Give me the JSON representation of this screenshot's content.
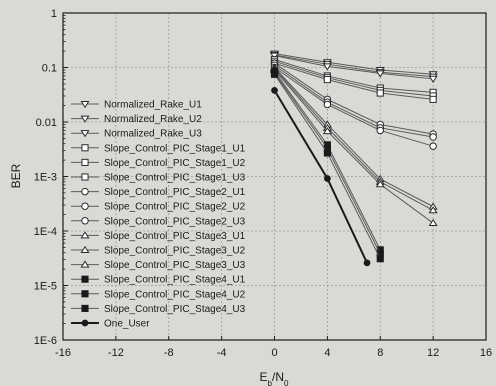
{
  "chart_data": {
    "type": "line",
    "title": "",
    "xlabel": "E",
    "xlabel_sub": "b",
    "xlabel_sep": "/N",
    "xlabel_sub2": "0",
    "ylabel": "BER",
    "xlim": [
      -16,
      16
    ],
    "ylim": [
      1e-06,
      1
    ],
    "yscale": "log",
    "grid": true,
    "legend_position": "left",
    "x_ticks": [
      -16,
      -12,
      -8,
      -4,
      0,
      4,
      8,
      12,
      16
    ],
    "x_tick_labels": [
      "-16",
      "-12",
      "-8",
      "-4",
      "0",
      "4",
      "8",
      "12",
      "16"
    ],
    "y_ticks": [
      1,
      0.1,
      0.01,
      0.001,
      0.0001,
      1e-05,
      1e-06
    ],
    "y_tick_labels": [
      "1",
      "0.1",
      "0.01",
      "1E-3",
      "1E-4",
      "1E-5",
      "1E-6"
    ],
    "x": [
      0,
      4,
      8,
      12
    ],
    "series": [
      {
        "name": "Normalized_Rake_U1",
        "marker": "triangle-down",
        "values": [
          0.18,
          0.125,
          0.09,
          0.075
        ]
      },
      {
        "name": "Normalized_Rake_U2",
        "marker": "triangle-down",
        "values": [
          0.17,
          0.115,
          0.082,
          0.068
        ]
      },
      {
        "name": "Normalized_Rake_U3",
        "marker": "triangle-down",
        "values": [
          0.165,
          0.105,
          0.078,
          0.062
        ]
      },
      {
        "name": "Slope_Control_PIC_Stage1_U1",
        "marker": "square-open",
        "values": [
          0.14,
          0.07,
          0.042,
          0.035
        ]
      },
      {
        "name": "Slope_Control_PIC_Stage1_U2",
        "marker": "square-open",
        "values": [
          0.13,
          0.065,
          0.038,
          0.03
        ]
      },
      {
        "name": "Slope_Control_PIC_Stage1_U3",
        "marker": "square-open",
        "values": [
          0.12,
          0.06,
          0.034,
          0.026
        ]
      },
      {
        "name": "Slope_Control_PIC_Stage2_U1",
        "marker": "circle-open",
        "values": [
          0.12,
          0.026,
          0.009,
          0.006
        ]
      },
      {
        "name": "Slope_Control_PIC_Stage2_U2",
        "marker": "circle-open",
        "values": [
          0.11,
          0.023,
          0.0078,
          0.0053
        ]
      },
      {
        "name": "Slope_Control_PIC_Stage2_U3",
        "marker": "circle-open",
        "values": [
          0.1,
          0.021,
          0.007,
          0.0036
        ]
      },
      {
        "name": "Slope_Control_PIC_Stage3_U1",
        "marker": "triangle-up",
        "values": [
          0.1,
          0.009,
          0.0009,
          0.00028
        ]
      },
      {
        "name": "Slope_Control_PIC_Stage3_U2",
        "marker": "triangle-up",
        "values": [
          0.095,
          0.0078,
          0.0008,
          0.00024
        ]
      },
      {
        "name": "Slope_Control_PIC_Stage3_U3",
        "marker": "triangle-up",
        "values": [
          0.09,
          0.0068,
          0.00072,
          0.00014
        ]
      },
      {
        "name": "Slope_Control_PIC_Stage4_U1",
        "marker": "square-filled",
        "values": [
          0.085,
          0.0038,
          4.5e-05,
          null
        ]
      },
      {
        "name": "Slope_Control_PIC_Stage4_U2",
        "marker": "square-filled",
        "values": [
          0.08,
          0.0033,
          3.8e-05,
          null
        ]
      },
      {
        "name": "Slope_Control_PIC_Stage4_U3",
        "marker": "square-filled",
        "values": [
          0.075,
          0.0027,
          3.1e-05,
          null
        ]
      },
      {
        "name": "One_User",
        "marker": "circle-filled",
        "points": [
          [
            0,
            0.038
          ],
          [
            4,
            0.00092
          ],
          [
            7,
            2.6e-05
          ]
        ]
      }
    ],
    "colors": {
      "line": "#5a5a5a",
      "one_user_line": "#1a1a1a",
      "grid": "#9a9a9a",
      "background": "#d9d9d6"
    }
  }
}
